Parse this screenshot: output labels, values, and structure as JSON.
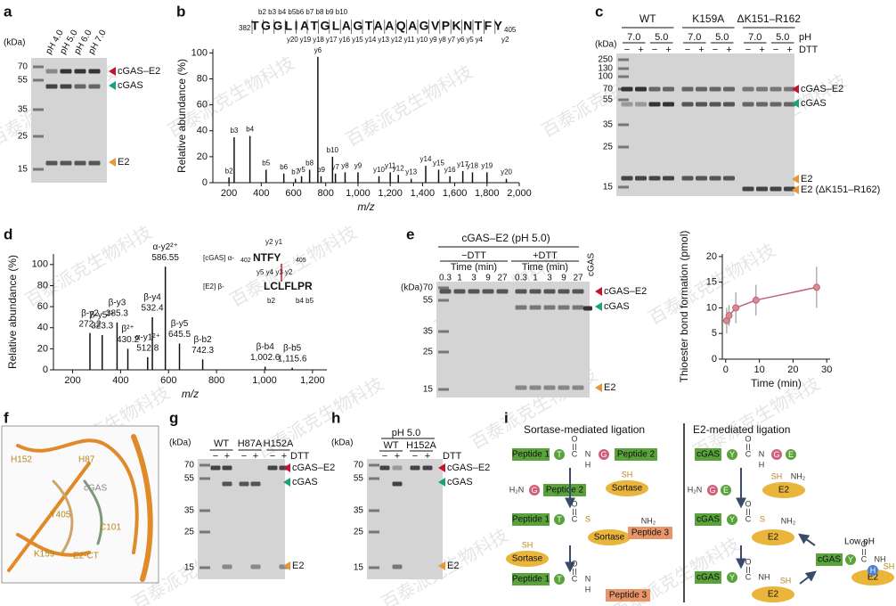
{
  "watermark": "百泰派克生物科技",
  "panels": {
    "a": {
      "letter": "a",
      "unit": "(kDa)",
      "lanes": [
        "pH 4.0",
        "pH 5.0",
        "pH 6.0",
        "pH 7.0"
      ],
      "markers": [
        70,
        55,
        35,
        25,
        15
      ],
      "bands": [
        "cGAS–E2",
        "cGAS",
        "E2"
      ]
    },
    "b": {
      "letter": "b",
      "start": 382,
      "sequence": "TGGLIATGLAGTAAQAGVPKNTFY",
      "end": 405,
      "b_ions": "b2 b3 b4 b5b6 b7 b8 b9 b10",
      "y_ions": "y20 y19 y18 y17 y16 y15 y14 y13 y12 y11 y10 y9 y8 y7 y6 y5 y4",
      "y_last": "y2"
    },
    "c": {
      "letter": "c",
      "unit": "(kDa)",
      "groups": [
        "WT",
        "K159A",
        "ΔK151–R162"
      ],
      "ph": [
        "7.0",
        "5.0"
      ],
      "ph_label": "pH",
      "dtt_label": "DTT",
      "signs": [
        "−",
        "+"
      ],
      "markers": [
        250,
        130,
        100,
        70,
        55,
        35,
        25,
        15
      ],
      "bands": [
        "cGAS–E2",
        "cGAS",
        "E2",
        "E2 (ΔK151–R162)"
      ]
    },
    "d": {
      "letter": "d",
      "alpha": "[cGAS] α-",
      "alpha_start": 402,
      "alpha_seq": "NTFY",
      "alpha_end": 405,
      "beta": "[E2] β-",
      "beta_seq": "LCLFLPR",
      "ions_top": "y2 y1",
      "ions_mid": "y5 y4 y3 y2",
      "ions_b2": "b2",
      "ions_b45": "b4 b5"
    },
    "e": {
      "letter": "e",
      "unit": "(kDa)",
      "title": "cGAS–E2 (pH 5.0)",
      "conditions": [
        "−DTT",
        "+DTT"
      ],
      "time": "Time (min)",
      "times": [
        0.3,
        1,
        3,
        9,
        27
      ],
      "control": "cGAS",
      "markers": [
        70,
        55,
        35,
        25,
        15
      ],
      "bands": [
        "cGAS–E2",
        "cGAS",
        "E2"
      ]
    },
    "f": {
      "letter": "f",
      "labels": [
        "H152",
        "H87",
        "cGAS",
        "Y405",
        "C101",
        "K159",
        "E2-CT"
      ]
    },
    "g": {
      "letter": "g",
      "unit": "(kDa)",
      "groups": [
        "WT",
        "H87A",
        "H152A"
      ],
      "dtt": "DTT",
      "signs": [
        "−",
        "+"
      ],
      "markers": [
        70,
        55,
        35,
        25,
        15
      ],
      "bands": [
        "cGAS–E2",
        "cGAS",
        "E2"
      ]
    },
    "h": {
      "letter": "h",
      "unit": "(kDa)",
      "ph": "pH 5.0",
      "groups": [
        "WT",
        "H152A"
      ],
      "dtt": "DTT",
      "signs": [
        "−",
        "+"
      ],
      "markers": [
        70,
        55,
        35,
        25,
        15
      ],
      "bands": [
        "cGAS–E2",
        "cGAS",
        "E2"
      ]
    },
    "i": {
      "letter": "i",
      "titles": [
        "Sortase-mediated ligation",
        "E2-mediated ligation"
      ],
      "peptide1": "Peptide 1",
      "peptide2": "Peptide 2",
      "peptide3": "Peptide 3",
      "sortase": "Sortase",
      "cgas": "cGAS",
      "e2": "E2",
      "low_ph": "Low pH",
      "T": "T",
      "G": "G",
      "Y": "Y",
      "E": "E",
      "C": "C",
      "N": "N",
      "O": "O",
      "S": "S",
      "H": "H",
      "SH": "SH",
      "NH": "NH",
      "NH2": "NH₂",
      "H2N": "H₂N"
    }
  },
  "chart_data": [
    {
      "type": "stem",
      "xlabel": "m/z",
      "ylabel": "Relative abundance (%)",
      "color": "#111111",
      "xlim": [
        100,
        2000
      ],
      "ylim": [
        0,
        103
      ],
      "xticks": [
        200,
        400,
        600,
        800,
        {
          "value": 1000,
          "label": "1,000"
        },
        {
          "value": 1200,
          "label": "1,200"
        },
        {
          "value": 1400,
          "label": "1,400"
        },
        {
          "value": 1600,
          "label": "1,600"
        },
        {
          "value": 1800,
          "label": "1,800"
        },
        {
          "value": 2000,
          "label": "2,000"
        }
      ],
      "yticks": [
        0,
        20,
        40,
        60,
        80,
        100
      ],
      "x": [
        200,
        232,
        330,
        430,
        540,
        612,
        700,
        771,
        842,
        751,
        650,
        860,
        920,
        1000,
        1130,
        1200,
        1250,
        1330,
        1420,
        1500,
        1570,
        1650,
        1710,
        1800,
        1920
      ],
      "values": [
        4,
        35,
        36,
        10,
        7,
        3,
        10,
        5,
        20,
        97,
        5,
        7,
        8,
        8,
        5,
        8,
        6,
        3,
        13,
        10,
        5,
        9,
        8,
        8,
        3
      ],
      "labels": [
        "b2",
        "b3",
        "b4",
        "b5",
        "b6",
        "b7",
        "b8",
        "b9",
        "b10",
        "y6",
        "y5",
        "y7",
        "y8",
        "y9",
        "y10",
        "y11",
        "y12",
        "y13",
        "y14",
        "y15",
        "y16",
        "y17",
        "y18",
        "y19",
        "y20"
      ]
    },
    {
      "type": "stem",
      "xlabel": "m/z",
      "ylabel": "Relative abundance (%)",
      "color": "#111111",
      "xlim": [
        120,
        1260
      ],
      "ylim": [
        0,
        110
      ],
      "xticks": [
        200,
        400,
        600,
        800,
        {
          "value": 1000,
          "label": "1,000"
        },
        {
          "value": 1200,
          "label": "1,200"
        }
      ],
      "yticks": [
        0,
        20,
        40,
        60,
        80,
        100
      ],
      "x": [
        272.2,
        323.3,
        385.3,
        430.2,
        512.8,
        532.4,
        586.55,
        645.5,
        742.3,
        1002.6,
        1115.6
      ],
      "x_labels": [
        "272.2",
        "323.3",
        "385.3",
        "430.2",
        "512.8",
        "532.4",
        "586.55",
        "645.5",
        "742.3",
        "1,002.6",
        "1,115.6"
      ],
      "values": [
        35,
        33,
        45,
        20,
        12,
        50,
        98,
        25,
        10,
        3,
        2
      ],
      "labels": [
        "β-y2",
        "β-y5²⁺",
        "β-y3",
        "β²⁺",
        "α-y1²⁺",
        "β-y4",
        "α-y2²⁺",
        "β-y5",
        "β-b2",
        "β-b4",
        "β-b5"
      ]
    },
    {
      "type": "scatter",
      "xlabel": "Time (min)",
      "ylabel": "Thioester bond formation (pmol)",
      "color": "#c0607a",
      "xlim": [
        -1,
        31
      ],
      "ylim": [
        0,
        20.5
      ],
      "xticks": [
        0,
        10,
        20,
        30
      ],
      "yticks": [
        0,
        5,
        10,
        15,
        20
      ],
      "x": [
        0.3,
        1,
        3,
        9,
        27
      ],
      "values": [
        7.5,
        8.5,
        10,
        11.5,
        14
      ],
      "errors": [
        2.5,
        2,
        3,
        3,
        4
      ]
    }
  ]
}
